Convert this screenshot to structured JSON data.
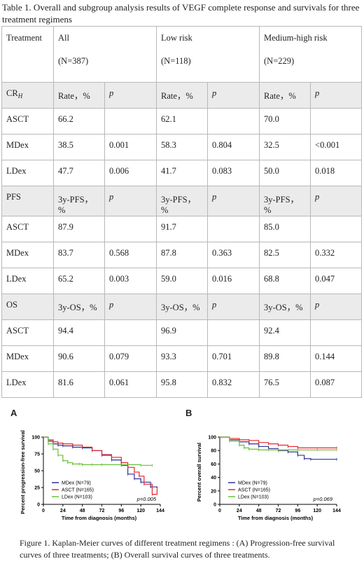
{
  "table": {
    "caption": "Table 1. Overall and subgroup analysis results of VEGF complete response and survivals for three treatment regimens",
    "header": {
      "treatment": "Treatment",
      "groups": [
        {
          "name": "All",
          "n": "(N=387)"
        },
        {
          "name": "Low risk",
          "n": "(N=118)"
        },
        {
          "name": "Medium-high risk",
          "n": "(N=229)"
        }
      ]
    },
    "sections": [
      {
        "label": "CR",
        "label_sub": "H",
        "metric": "Rate，%",
        "p_label": "p",
        "rows": [
          {
            "treatment": "ASCT",
            "cells": [
              "66.2",
              "",
              "62.1",
              "",
              "70.0",
              ""
            ]
          },
          {
            "treatment": "MDex",
            "cells": [
              "38.5",
              "0.001",
              "58.3",
              "0.804",
              "32.5",
              "<0.001"
            ]
          },
          {
            "treatment": "LDex",
            "cells": [
              "47.7",
              "0.006",
              "41.7",
              "0.083",
              "50.0",
              "0.018"
            ]
          }
        ]
      },
      {
        "label": "PFS",
        "label_sub": "",
        "metric": "3y-PFS，%",
        "p_label": "p",
        "rows": [
          {
            "treatment": "ASCT",
            "cells": [
              "87.9",
              "",
              "91.7",
              "",
              "85.0",
              ""
            ]
          },
          {
            "treatment": "MDex",
            "cells": [
              "83.7",
              "0.568",
              "87.8",
              "0.363",
              "82.5",
              "0.332"
            ]
          },
          {
            "treatment": "LDex",
            "cells": [
              "65.2",
              "0.003",
              "59.0",
              "0.016",
              "68.8",
              "0.047"
            ]
          }
        ]
      },
      {
        "label": "OS",
        "label_sub": "",
        "metric": "3y-OS，%",
        "p_label": "p",
        "rows": [
          {
            "treatment": "ASCT",
            "cells": [
              "94.4",
              "",
              "96.9",
              "",
              "92.4",
              ""
            ]
          },
          {
            "treatment": "MDex",
            "cells": [
              "90.6",
              "0.079",
              "93.3",
              "0.701",
              "89.8",
              "0.144"
            ]
          },
          {
            "treatment": "LDex",
            "cells": [
              "81.6",
              "0.061",
              "95.8",
              "0.832",
              "76.5",
              "0.087"
            ]
          }
        ]
      }
    ]
  },
  "chart_data": [
    {
      "type": "line",
      "panel": "A",
      "xlabel": "Time from diagnosis (months)",
      "ylabel": "Percent progression-free survival",
      "xlim": [
        0,
        144
      ],
      "ylim": [
        0,
        100
      ],
      "xticks": [
        0,
        24,
        48,
        72,
        96,
        120,
        144
      ],
      "yticks": [
        0,
        25,
        50,
        75,
        100
      ],
      "annotation": "p=0.005",
      "legend_position": "bottom-left",
      "series": [
        {
          "name": "MDex (N=79)",
          "color": "#2e3192",
          "x": [
            0,
            6,
            12,
            18,
            24,
            36,
            48,
            60,
            72,
            84,
            96,
            104,
            112,
            120,
            132,
            140
          ],
          "y": [
            100,
            94,
            90,
            88,
            87,
            85,
            84,
            80,
            73,
            66,
            58,
            45,
            38,
            33,
            26,
            24
          ]
        },
        {
          "name": "ASCT (N=165)",
          "color": "#e8262d",
          "x": [
            0,
            6,
            12,
            18,
            24,
            36,
            48,
            60,
            72,
            84,
            96,
            104,
            112,
            118,
            124,
            134,
            140
          ],
          "y": [
            100,
            96,
            93,
            91,
            90,
            88,
            85,
            80,
            74,
            70,
            62,
            55,
            48,
            42,
            30,
            15,
            22
          ]
        },
        {
          "name": "LDex (N=103)",
          "color": "#6cbf3c",
          "x": [
            0,
            6,
            12,
            18,
            24,
            30,
            36,
            44,
            48,
            60,
            72,
            96,
            120,
            134
          ],
          "y": [
            100,
            90,
            82,
            73,
            65,
            62,
            60,
            60,
            59,
            59,
            59,
            59,
            58,
            58
          ]
        }
      ]
    },
    {
      "type": "line",
      "panel": "B",
      "xlabel": "Time from diagnosis (months)",
      "ylabel": "Percent overall survival",
      "xlim": [
        0,
        144
      ],
      "ylim": [
        0,
        100
      ],
      "xticks": [
        0,
        24,
        48,
        72,
        96,
        120,
        144
      ],
      "yticks": [
        0,
        20,
        40,
        60,
        80,
        100
      ],
      "annotation": "p=0.069",
      "legend_position": "bottom-left",
      "series": [
        {
          "name": "MDex (N=79)",
          "color": "#2e3192",
          "x": [
            0,
            12,
            24,
            36,
            48,
            60,
            72,
            84,
            96,
            104,
            112,
            144
          ],
          "y": [
            100,
            96,
            93,
            90,
            86,
            83,
            80,
            78,
            73,
            68,
            67,
            67
          ]
        },
        {
          "name": "ASCT (N=165)",
          "color": "#e8262d",
          "x": [
            0,
            12,
            24,
            36,
            48,
            60,
            72,
            84,
            96,
            144
          ],
          "y": [
            100,
            98,
            96,
            95,
            92,
            90,
            88,
            86,
            84,
            84
          ]
        },
        {
          "name": "LDex (N=103)",
          "color": "#6cbf3c",
          "x": [
            0,
            12,
            24,
            30,
            36,
            48,
            60,
            72,
            96,
            120,
            144
          ],
          "y": [
            100,
            94,
            88,
            84,
            82,
            81,
            81,
            81,
            81,
            81,
            81
          ]
        }
      ]
    }
  ],
  "figure_caption": "Figure 1. Kaplan-Meier curves of different treatment regimens : (A) Progression-free survival curves of three treatments; (B) Overall survival curves of three treatments."
}
